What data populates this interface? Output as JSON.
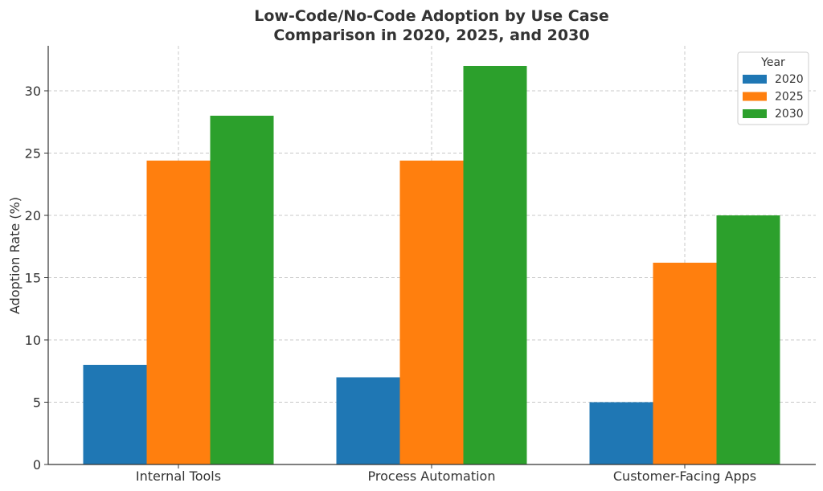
{
  "chart_data": {
    "type": "bar",
    "title": "Low-Code/No-Code Adoption by Use Case\nComparison in 2020, 2025, and 2030",
    "title_lines": [
      "Low-Code/No-Code Adoption by Use Case",
      "Comparison in 2020, 2025, and 2030"
    ],
    "xlabel": "",
    "ylabel": "Adoption Rate (%)",
    "categories": [
      "Internal Tools",
      "Process Automation",
      "Customer-Facing Apps"
    ],
    "series": [
      {
        "name": "2020",
        "color": "#1f77b4",
        "values": [
          8,
          7,
          5
        ]
      },
      {
        "name": "2025",
        "color": "#ff7f0e",
        "values": [
          24.4,
          24.4,
          16.2
        ]
      },
      {
        "name": "2030",
        "color": "#2ca02c",
        "values": [
          28,
          32,
          20
        ]
      }
    ],
    "ylim": [
      0,
      33.6
    ],
    "yticks": [
      0,
      5,
      10,
      15,
      20,
      25,
      30
    ],
    "grid": true,
    "legend": {
      "title": "Year",
      "placement": "top-right"
    }
  }
}
